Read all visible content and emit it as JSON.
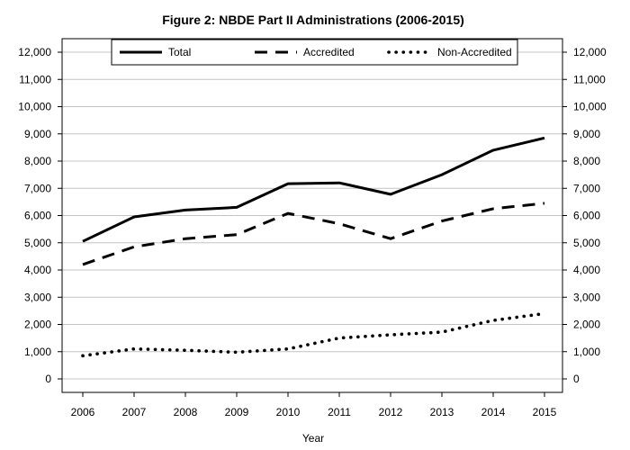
{
  "chart_data": {
    "type": "line",
    "title": "Figure 2: NBDE Part II Administrations (2006-2015)",
    "xlabel": "Year",
    "ylabel": "",
    "x": [
      "2006",
      "2007",
      "2008",
      "2009",
      "2010",
      "2011",
      "2012",
      "2013",
      "2014",
      "2015"
    ],
    "ylim": [
      0,
      12000
    ],
    "yticks": [
      0,
      1000,
      2000,
      3000,
      4000,
      5000,
      6000,
      7000,
      8000,
      9000,
      10000,
      11000,
      12000
    ],
    "ytick_labels": [
      "0",
      "1,000",
      "2,000",
      "3,000",
      "4,000",
      "5,000",
      "6,000",
      "7,000",
      "8,000",
      "9,000",
      "10,000",
      "11,000",
      "12,000"
    ],
    "grid": true,
    "y_axis_both_sides": true,
    "legend_position": "top-center",
    "series": [
      {
        "name": "Total",
        "style": "solid",
        "color": "#000000",
        "values": [
          5050,
          5950,
          6200,
          6300,
          7170,
          7200,
          6780,
          7500,
          8400,
          8850
        ]
      },
      {
        "name": "Accredited",
        "style": "dashed",
        "color": "#000000",
        "values": [
          4200,
          4850,
          5150,
          5300,
          6080,
          5700,
          5150,
          5800,
          6250,
          6450
        ]
      },
      {
        "name": "Non-Accredited",
        "style": "dotted",
        "color": "#000000",
        "values": [
          850,
          1100,
          1050,
          980,
          1100,
          1500,
          1620,
          1720,
          2150,
          2400
        ]
      }
    ]
  }
}
